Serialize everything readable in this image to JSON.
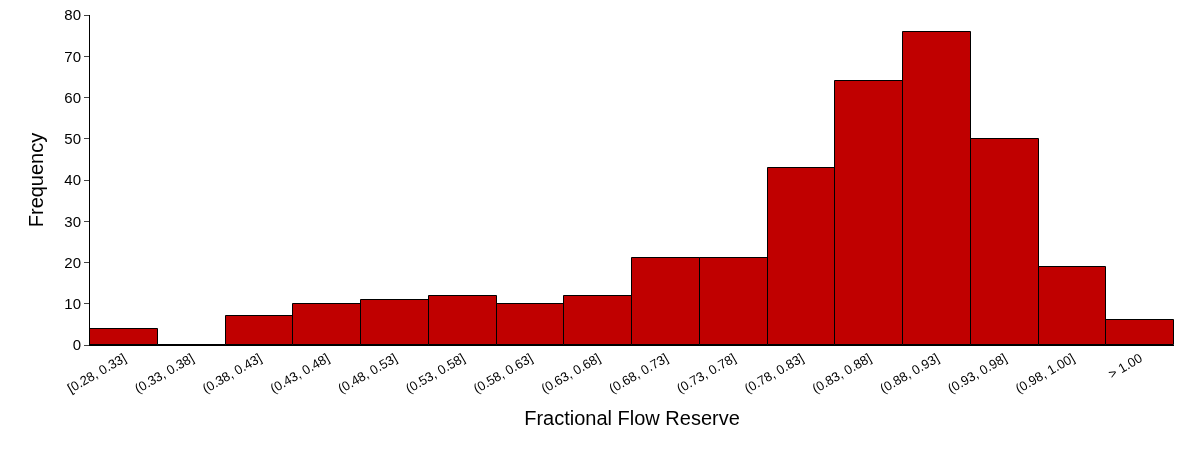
{
  "chart_data": {
    "type": "bar",
    "xlabel": "Fractional Flow Reserve",
    "ylabel": "Frequency",
    "categories": [
      "[0.28, 0.33]",
      "(0.33, 0.38]",
      "(0.38, 0.43]",
      "(0.43, 0.48]",
      "(0.48, 0.53]",
      "(0.53, 0.58]",
      "(0.58, 0.63]",
      "(0.63, 0.68]",
      "(0.68, 0.73]",
      "(0.73, 0.78]",
      "(0.78, 0.83]",
      "(0.83, 0.88]",
      "(0.88, 0.93]",
      "(0.93, 0.98]",
      "(0.98, 1.00]",
      "> 1.00"
    ],
    "values": [
      4,
      0,
      7,
      10,
      11,
      12,
      10,
      12,
      21,
      21,
      43,
      64,
      76,
      50,
      19,
      6
    ],
    "color": "#c00000",
    "ylim": [
      0,
      80
    ],
    "yticks": [
      0,
      10,
      20,
      30,
      40,
      50,
      60,
      70,
      80
    ]
  }
}
